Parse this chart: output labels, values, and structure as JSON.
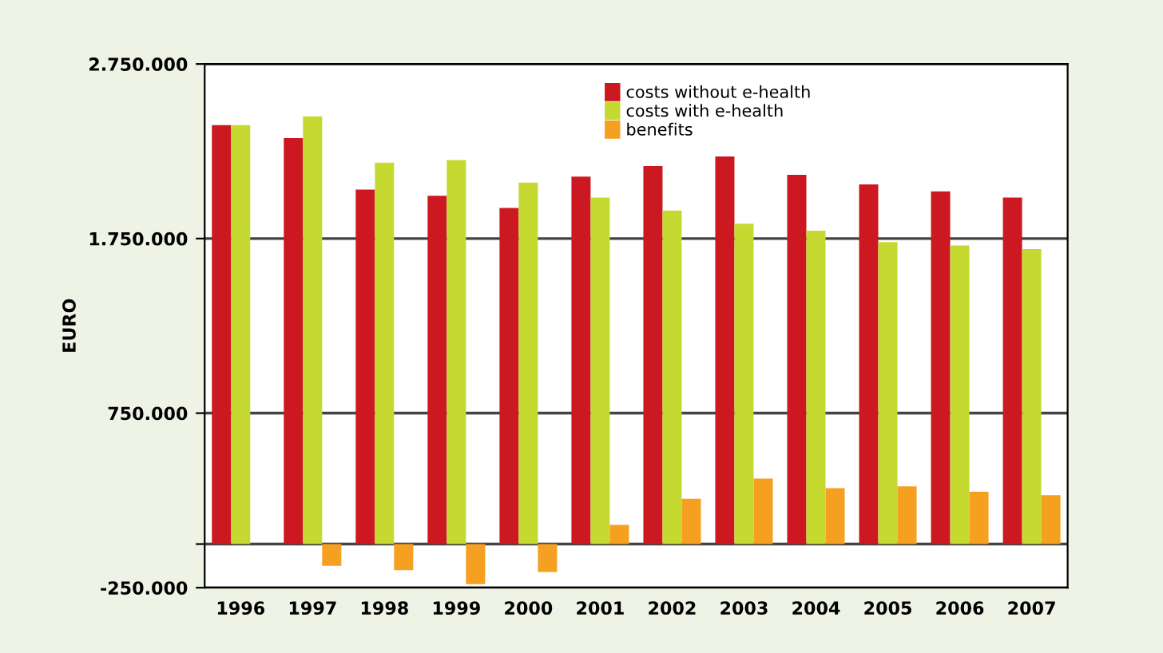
{
  "chart_data": {
    "type": "bar",
    "ylabel": "EURO",
    "categories": [
      "1996",
      "1997",
      "1998",
      "1999",
      "2000",
      "2001",
      "2002",
      "2003",
      "2004",
      "2005",
      "2006",
      "2007"
    ],
    "series": [
      {
        "name": "costs without e-health",
        "color": "#cc1820",
        "values": [
          2400000,
          2325000,
          2030000,
          1995000,
          1925000,
          2105000,
          2165000,
          2220000,
          2115000,
          2060000,
          2020000,
          1985000
        ]
      },
      {
        "name": "costs with e-health",
        "color": "#c5d930",
        "values": [
          2400000,
          2450000,
          2185000,
          2200000,
          2070000,
          1985000,
          1910000,
          1835000,
          1795000,
          1730000,
          1710000,
          1690000
        ]
      },
      {
        "name": "benefits",
        "color": "#f5a020",
        "values": [
          0,
          -125000,
          -150000,
          -230000,
          -160000,
          110000,
          260000,
          375000,
          320000,
          330000,
          300000,
          280000
        ]
      }
    ],
    "ylim": [
      -250000,
      2750000
    ],
    "yticks": [
      {
        "value": 2750000,
        "label": "2.750.000"
      },
      {
        "value": 1750000,
        "label": "1.750.000"
      },
      {
        "value": 750000,
        "label": "750.000"
      },
      {
        "value": 0,
        "label": null
      },
      {
        "value": -250000,
        "label": "-250.000"
      }
    ],
    "grid": "y",
    "legend": "top right"
  }
}
